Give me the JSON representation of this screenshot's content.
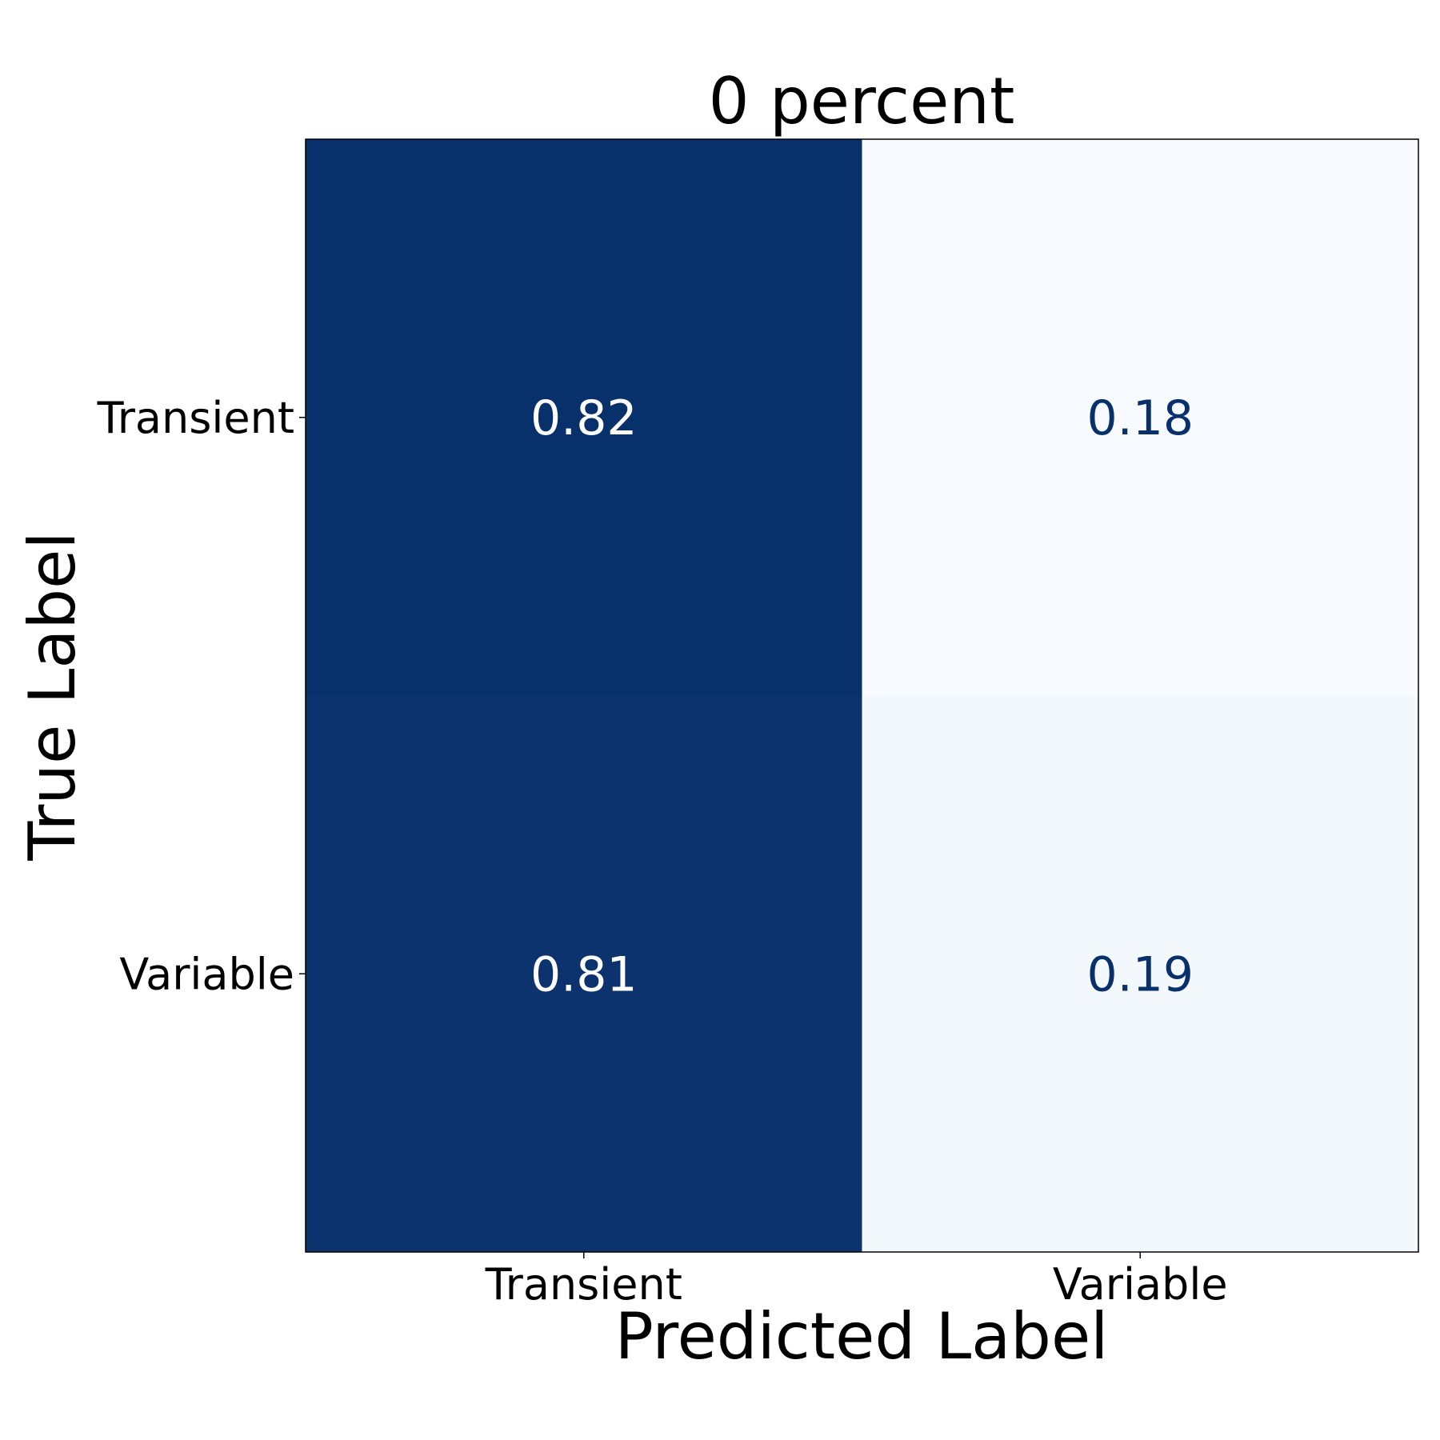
{
  "chart_data": {
    "type": "heatmap",
    "title": "0 percent",
    "xlabel": "Predicted Label",
    "ylabel": "True Label",
    "x_categories": [
      "Transient",
      "Variable"
    ],
    "y_categories": [
      "Transient",
      "Variable"
    ],
    "values": [
      [
        0.82,
        0.18
      ],
      [
        0.81,
        0.19
      ]
    ],
    "cell_labels": [
      [
        "0.82",
        "0.18"
      ],
      [
        "0.81",
        "0.19"
      ]
    ],
    "colormap": "Blues",
    "color_range": [
      0,
      1
    ],
    "colors": {
      "dark_cell": "#08306b",
      "light_cell": "#f7fbff",
      "dark_text": "#08306b",
      "light_text": "#ffffff",
      "axis_text": "#000000"
    },
    "grid": false,
    "colorbar": false
  }
}
